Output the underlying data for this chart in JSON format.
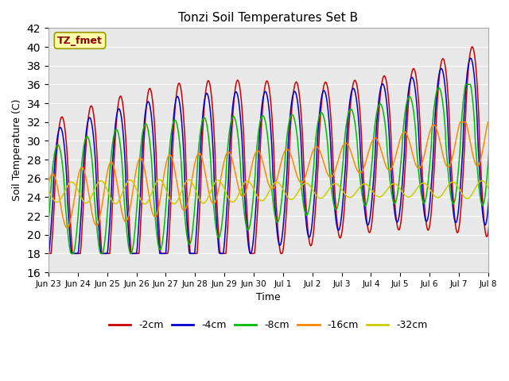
{
  "title": "Tonzi Soil Temperatures Set B",
  "xlabel": "Time",
  "ylabel": "Soil Temperature (C)",
  "annotation": "TZ_fmet",
  "ylim": [
    16,
    42
  ],
  "yticks": [
    16,
    18,
    20,
    22,
    24,
    26,
    28,
    30,
    32,
    34,
    36,
    38,
    40,
    42
  ],
  "bg_color": "#e8e8e8",
  "fig_color": "#ffffff",
  "series_colors": {
    "-2cm": "#cc0000",
    "-4cm": "#0000cc",
    "-8cm": "#00bb00",
    "-16cm": "#ff8800",
    "-32cm": "#cccc00"
  },
  "annotation_box_color": "#ffffaa",
  "annotation_text_color": "#880000",
  "tick_labels": [
    "Jun 23",
    "Jun 24",
    "Jun 25",
    "Jun 26",
    "Jun 27",
    "Jun 28",
    "Jun 29",
    "Jun 30",
    "Jul 1",
    "Jul 2",
    "Jul 3",
    "Jul 4",
    "Jul 5",
    "Jul 6",
    "Jul 7",
    "Jul 8"
  ],
  "n_days": 16,
  "pts_per_day": 48
}
